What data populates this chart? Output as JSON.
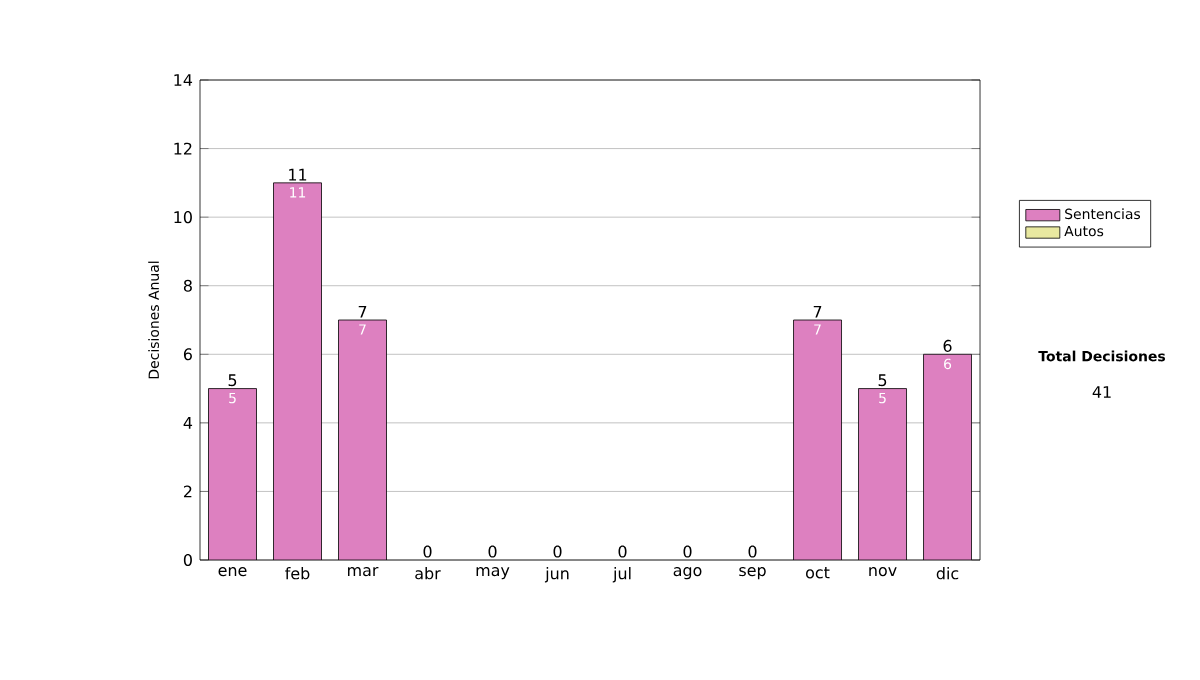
{
  "chart_data": {
    "type": "bar",
    "stacked": true,
    "ylabel": "Decisiones Anual",
    "categories": [
      "ene",
      "feb",
      "mar",
      "abr",
      "may",
      "jun",
      "jul",
      "ago",
      "sep",
      "oct",
      "nov",
      "dic"
    ],
    "series": [
      {
        "name": "Sentencias",
        "color": "#dd80c0",
        "values": [
          5,
          11,
          7,
          0,
          0,
          0,
          0,
          0,
          0,
          7,
          5,
          6
        ],
        "value_labels": [
          "5",
          "11",
          "7",
          null,
          null,
          null,
          null,
          null,
          null,
          "7",
          "5",
          "6"
        ]
      },
      {
        "name": "Autos",
        "color": "#e8e8a0",
        "values": [
          0,
          0,
          0,
          0,
          0,
          0,
          0,
          0,
          0,
          0,
          0,
          0
        ]
      }
    ],
    "totals": [
      "5",
      "11",
      "7",
      "0",
      "0",
      "0",
      "0",
      "0",
      "0",
      "7",
      "5",
      "6"
    ],
    "ylim": [
      0,
      14
    ],
    "yticks": [
      0,
      2,
      4,
      6,
      8,
      10,
      12,
      14
    ],
    "grid": "y",
    "legend": "right",
    "annotations": [
      "Total Decisiones",
      "41"
    ]
  }
}
